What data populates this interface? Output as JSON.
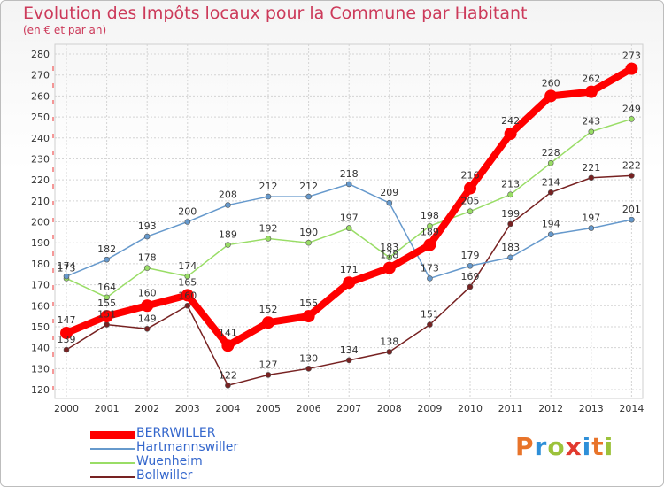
{
  "title": "Evolution des Impôts locaux pour la Commune par Habitant",
  "subtitle": "(en € et par an)",
  "logo": {
    "text": "Proxiti",
    "colors": [
      "#e8742a",
      "#2e8fd8",
      "#9cc23b",
      "#e23a2f",
      "#2e8fd8",
      "#e8742a",
      "#9cc23b"
    ]
  },
  "chart_data": {
    "type": "line",
    "x": [
      "2000",
      "2001",
      "2002",
      "2003",
      "2004",
      "2005",
      "2006",
      "2007",
      "2008",
      "2009",
      "2010",
      "2011",
      "2012",
      "2013",
      "2014"
    ],
    "ylim": [
      120,
      280
    ],
    "yticks": [
      120,
      130,
      140,
      150,
      160,
      170,
      180,
      190,
      200,
      210,
      220,
      230,
      240,
      250,
      260,
      270,
      280
    ],
    "grid": true,
    "legend_position": "bottom-left",
    "series": [
      {
        "name": "BERRWILLER",
        "color": "#ff0000",
        "values": [
          147,
          155,
          160,
          165,
          141,
          152,
          155,
          171,
          178,
          189,
          216,
          242,
          260,
          262,
          273
        ]
      },
      {
        "name": "Hartmannswiller",
        "color": "#6699cc",
        "values": [
          174,
          182,
          193,
          200,
          208,
          212,
          212,
          218,
          209,
          173,
          179,
          183,
          194,
          197,
          201
        ]
      },
      {
        "name": "Wuenheim",
        "color": "#99dd66",
        "values": [
          173,
          164,
          178,
          174,
          189,
          192,
          190,
          197,
          183,
          198,
          205,
          213,
          228,
          243,
          249
        ]
      },
      {
        "name": "Bollwiller",
        "color": "#772222",
        "values": [
          139,
          151,
          149,
          160,
          122,
          127,
          130,
          134,
          138,
          151,
          169,
          199,
          214,
          221,
          222
        ]
      }
    ]
  }
}
